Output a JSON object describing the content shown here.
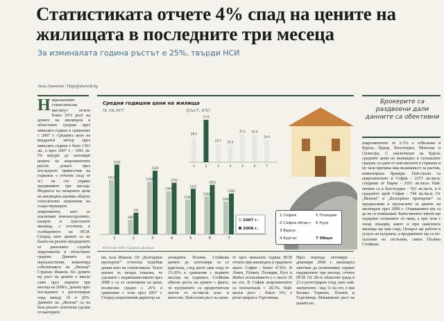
{
  "headline": "Статистиката отчете 4% спад на цените на жилищата в последните три месеца",
  "subheadline": "За изминалата година ръстът е 25%, твърди НСИ",
  "byline": "Лили Граничка | lilign@dnevnik.bg",
  "sidebar_heading": "Брокерите са раздвоени дали данните са обективни",
  "columns": {
    "c1_dropcap": "Н",
    "c1": "ационалният статистически институт отчете близо 25% ръст на цените на жилищата в областните градове през миналата година в сравнение с 2007 г. Средната цена на квадратен метър през миналата година е била 1363 лв., а през 2007 г. - 1091 лв. От януари до октомври цените на апартаментите растат, докато през последното тримесечие на годината е отчетен спад от 4.1 на сто спрямо предишните три месеца. Индексът на пазарните цени на жилищата оценява общото относително изменение на съществуващите апартаменти, като се изключват новопостроените, къщите и луксозните жилища, е посочено в съобщението на НСИ. Според него цените са на базата на реално продадените от данъчните служби апартаменти в областните градове. Данните са нереалистични, коментира собственикът на „Явлена“ Страхил Иванов. По думите му ръст на цените е имало само през първите три месеца на 2008 г., докато през последните е регистриран спад между 10 и 20%. Данните на „Явлена“ са на база реално сключени сделки от канторите",
    "c2": "ни, каза Иванов. От „Българиън пропъртис“ отчетоха подобни данни като на статистиката. Техен анализ за пазара показва, че сделките с недвижими имоти през 2008 г. са се сключвали на цени, по-високи средно с 26% в сравнение с тези през 2007 г. Според оперативния директор на",
    "c3": "агенцията Полина Стойкова цените до септември са се вдигнали, след което има спад от 15-20% в сравнение с първите месеци на годината. Стойкова обясни ръста на цените с факта, че купувачите са предпочитали имоти от по-висок клас и качество. Най-голям ръст на цени-",
    "c4": "те през миналата година НСИ отчита при жилищата в градовете около София - близо 47.8%. В Ловеч, Плевен, Пловдив, Русе и Ямбол поскъпването е с около 30 на сто. В София апартаментите са поскъпнали с 28.5%. Най-малък ръст - близо 6%, е регистриран в Търговище.",
    "c5": "През периода октомври - декември 2008 г. жилищата започват да поевтиняват спрямо предишните три месеца, отчита НСИ. От 28-те областни града в 23 е регистриран спад, като най-значителен - над 11 на сто, е във Велико Търново, Плевен и Търговище. Минимален ръст на цените на",
    "c6": "апартаментите от 2-3% е отбелязан в Бургас, Враца, Кюстендил, Монтана и Силистра. С изключение на Бургас средните цени на жилищата в останалите градове са едни от най-ниските в страната и по тази причина има възможност за растеж, коментираха брокери. Най-скъпи са апартаментите в София - 2373 лв./кв.м, следвани от Варна - 2101 лв./кв.м. Най-евтини са в Кюстендил - 763 лв./кв.м, и в градовете край София - 744 лв./кв.м. От „Явлена“ и „Българиън пропъртис“ са предпазливи в прогнозите за цените на жилищата през 2009 г. Очакванията им са да не се повишават. Качествените имоти ще задържат сегашните си нива, а при тези с лоша локация, както и при панелните жилища ще има спад. Пазарът ще работи в услуга на купувача, а продавачите ще са по-склонни на отстъпки, смята Полина Стойкова."
  },
  "chart_data": [
    {
      "type": "bar",
      "title": "Средни годишни цени на жилища",
      "ylabel": "(в лв./м²)",
      "categories": [
        "1",
        "2",
        "3",
        "4",
        "5",
        "6",
        "7"
      ],
      "series": [
        {
          "name": "2007 г.",
          "values": [
            1813,
            488,
            1762,
            1442,
            1160,
            1262,
            1091
          ]
        },
        {
          "name": "2008 г.",
          "values": [
            2329,
            721,
            2126,
            1722,
            1521,
            1652,
            1363
          ]
        }
      ],
      "ylim": [
        0,
        2500
      ],
      "legend": "bottom-right",
      "grid": false,
      "colors": {
        "2007 г.": "#b8c7bc",
        "2008 г.": "#2d5a45"
      }
    },
    {
      "type": "bar",
      "title": "(ръст, в%)",
      "categories": [
        "1",
        "2",
        "3",
        "4",
        "5",
        "6",
        "7"
      ],
      "values": [
        28.5,
        47.8,
        20.7,
        19.3,
        31.1,
        30.9,
        24.9
      ],
      "ylim": [
        0,
        50
      ],
      "highlight_color": "#2d5a45",
      "color": "#e4e8e2"
    }
  ],
  "legend_cities": [
    {
      "num": "1",
      "name": "София"
    },
    {
      "num": "2",
      "name": "София област"
    },
    {
      "num": "3",
      "name": "Варна"
    },
    {
      "num": "4",
      "name": "Бургас"
    },
    {
      "num": "5",
      "name": "Пловдив"
    },
    {
      "num": "6",
      "name": "Русе"
    },
    {
      "num": "7",
      "name": "Общо"
    }
  ],
  "source": "Източник: НСИ | Графика: Дневник"
}
